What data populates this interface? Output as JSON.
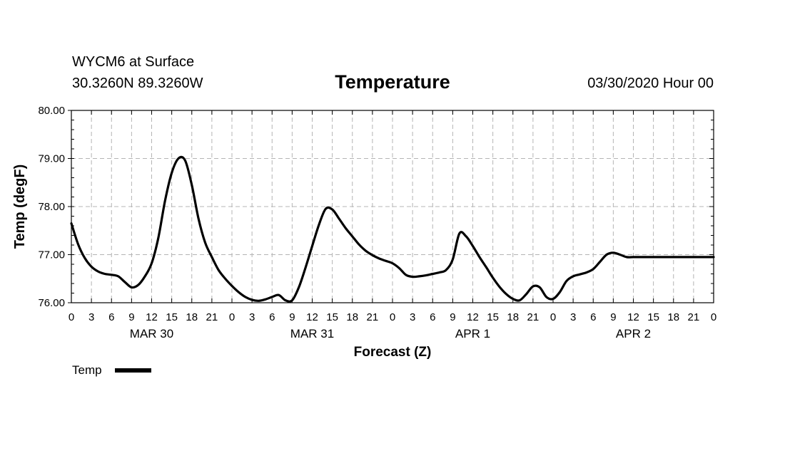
{
  "header": {
    "station": "WYCM6 at Surface",
    "coords": "30.3260N 89.3260W",
    "title": "Temperature",
    "datetime": "03/30/2020 Hour 00"
  },
  "legend": {
    "label": "Temp"
  },
  "chart_data": {
    "type": "line",
    "title": "Temperature",
    "xlabel": "Forecast (Z)",
    "ylabel": "Temp (degF)",
    "ylim": [
      76.0,
      80.0
    ],
    "xlim": [
      0,
      96
    ],
    "y_ticks": [
      "76.00",
      "77.00",
      "78.00",
      "79.00",
      "80.00"
    ],
    "x_tick_labels": [
      "0",
      "3",
      "6",
      "9",
      "12",
      "15",
      "18",
      "21",
      "0",
      "3",
      "6",
      "9",
      "12",
      "15",
      "18",
      "21",
      "0",
      "3",
      "6",
      "9",
      "12",
      "15",
      "18",
      "21",
      "0",
      "3",
      "6",
      "9",
      "12",
      "15",
      "18",
      "21",
      "0"
    ],
    "day_labels": [
      {
        "label": "MAR 30",
        "hour": 12
      },
      {
        "label": "MAR 31",
        "hour": 36
      },
      {
        "label": "APR 1",
        "hour": 60
      },
      {
        "label": "APR 2",
        "hour": 84
      }
    ],
    "grid": true,
    "legend_position": "bottom-left",
    "series": [
      {
        "name": "Temp",
        "color": "#000000",
        "x": [
          0,
          1,
          2,
          3,
          4,
          5,
          6,
          7,
          8,
          9,
          10,
          11,
          12,
          13,
          14,
          15,
          16,
          17,
          18,
          19,
          20,
          21,
          22,
          23,
          24,
          25,
          26,
          27,
          28,
          29,
          30,
          31,
          32,
          33,
          34,
          35,
          36,
          37,
          38,
          39,
          40,
          41,
          42,
          43,
          44,
          45,
          46,
          47,
          48,
          49,
          50,
          51,
          52,
          53,
          54,
          55,
          56,
          57,
          58,
          59,
          60,
          61,
          62,
          63,
          64,
          65,
          66,
          67,
          68,
          69,
          70,
          71,
          72,
          73,
          74,
          75,
          76,
          77,
          78,
          79,
          80,
          81,
          82,
          83,
          84,
          85,
          86,
          87,
          88,
          89,
          90,
          91,
          92,
          93,
          94,
          95,
          96
        ],
        "values": [
          77.65,
          77.22,
          76.93,
          76.75,
          76.65,
          76.6,
          76.58,
          76.55,
          76.43,
          76.32,
          76.37,
          76.55,
          76.82,
          77.35,
          78.12,
          78.7,
          79.0,
          78.96,
          78.45,
          77.75,
          77.25,
          76.95,
          76.68,
          76.5,
          76.35,
          76.22,
          76.12,
          76.06,
          76.04,
          76.07,
          76.12,
          76.16,
          76.05,
          76.05,
          76.32,
          76.73,
          77.18,
          77.62,
          77.95,
          77.94,
          77.75,
          77.55,
          77.38,
          77.21,
          77.08,
          76.99,
          76.92,
          76.87,
          76.82,
          76.72,
          76.58,
          76.54,
          76.55,
          76.57,
          76.6,
          76.63,
          76.68,
          76.9,
          77.44,
          77.38,
          77.18,
          76.95,
          76.74,
          76.52,
          76.33,
          76.18,
          76.08,
          76.05,
          76.18,
          76.34,
          76.32,
          76.12,
          76.08,
          76.22,
          76.45,
          76.55,
          76.59,
          76.63,
          76.7,
          76.85,
          77.0,
          77.04,
          77.0,
          76.95,
          76.95,
          76.95,
          76.95,
          76.95,
          76.95,
          76.95,
          76.95,
          76.95,
          76.95,
          76.95,
          76.95,
          76.95,
          76.95
        ]
      }
    ]
  }
}
